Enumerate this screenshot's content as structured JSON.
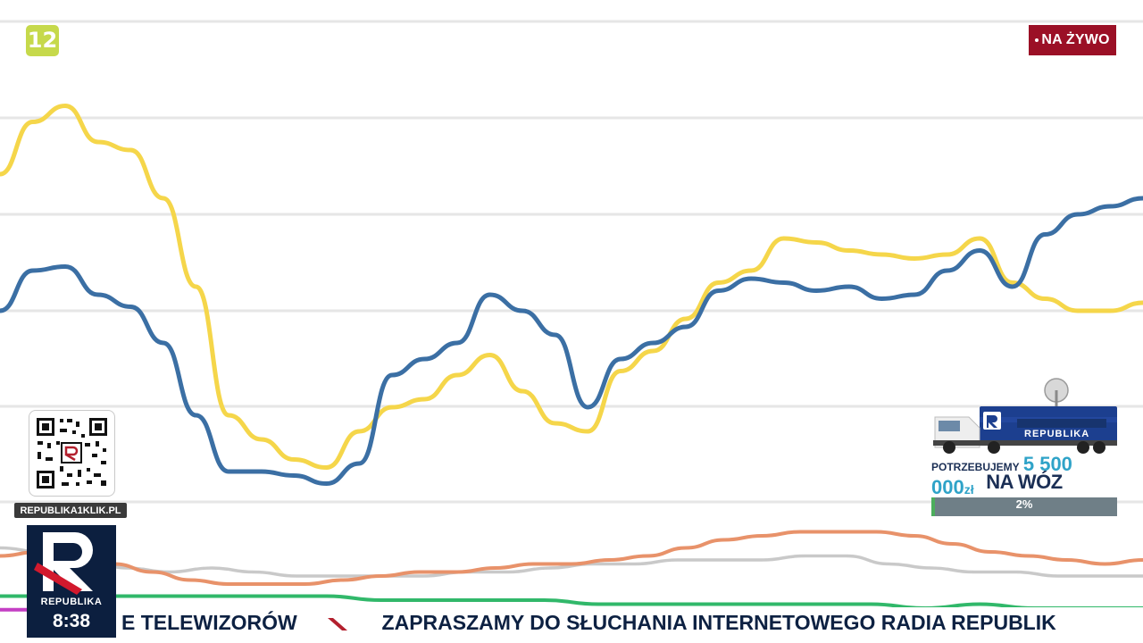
{
  "channel_badge": "12",
  "live_label": "NA ŻYWO",
  "website": "REPUBLIKA1KLIK.PL",
  "logo_name": "REPUBLIKA",
  "clock": "8:38",
  "ticker": {
    "left_text": "E TELEWIZORÓW",
    "right_text": "ZAPRASZAMY DO SŁUCHANIA INTERNETOWEGO RADIA REPUBLIK"
  },
  "promo": {
    "truck_label": "REPUBLIKA",
    "line1_prefix": "POTRZEBUJEMY",
    "amount": "5 500 000",
    "currency": "zł",
    "line2": "NA WÓZ TRANSMISYJNY",
    "progress_label": "2%",
    "progress_value": 0.02
  },
  "colors": {
    "blue": "#3b6fa4",
    "yellow": "#f5d64a",
    "orange": "#e8926a",
    "gray": "#c9c9c9",
    "green": "#31b86a",
    "magenta": "#c43ec4",
    "live_bg": "#9b1026",
    "logo_bg": "#0c1f3f"
  },
  "chart_data": {
    "type": "line",
    "title": "",
    "xlabel": "",
    "ylabel": "",
    "grid": true,
    "ylim": [
      0,
      6
    ],
    "series": [
      {
        "color": "blue",
        "values": [
          3.6,
          4.1,
          4.15,
          3.8,
          3.65,
          3.2,
          2.3,
          1.6,
          1.6,
          1.55,
          1.45,
          1.7,
          2.8,
          3.0,
          3.2,
          3.8,
          3.6,
          3.3,
          2.4,
          3.0,
          3.2,
          3.4,
          3.85,
          4.0,
          3.95,
          3.85,
          3.9,
          3.75,
          3.8,
          4.1,
          4.35,
          3.9,
          4.55,
          4.8,
          4.9,
          5.0
        ]
      },
      {
        "color": "yellow",
        "values": [
          5.3,
          5.95,
          6.15,
          5.7,
          5.6,
          5.0,
          3.9,
          2.3,
          2.0,
          1.75,
          1.65,
          2.1,
          2.4,
          2.5,
          2.8,
          3.05,
          2.6,
          2.2,
          2.1,
          2.85,
          3.1,
          3.5,
          3.95,
          4.1,
          4.5,
          4.45,
          4.35,
          4.3,
          4.25,
          4.3,
          4.5,
          3.95,
          3.75,
          3.6,
          3.6,
          3.7
        ]
      },
      {
        "color": "orange",
        "values": [
          0.55,
          0.6,
          0.55,
          0.45,
          0.35,
          0.25,
          0.2,
          0.2,
          0.2,
          0.25,
          0.3,
          0.35,
          0.35,
          0.4,
          0.45,
          0.45,
          0.5,
          0.55,
          0.65,
          0.75,
          0.8,
          0.85,
          0.85,
          0.85,
          0.8,
          0.7,
          0.6,
          0.55,
          0.5,
          0.45,
          0.5
        ]
      },
      {
        "color": "gray",
        "values": [
          0.65,
          0.6,
          0.5,
          0.4,
          0.35,
          0.4,
          0.35,
          0.3,
          0.3,
          0.3,
          0.3,
          0.35,
          0.35,
          0.4,
          0.45,
          0.45,
          0.5,
          0.5,
          0.5,
          0.55,
          0.55,
          0.45,
          0.4,
          0.35,
          0.35,
          0.3,
          0.3,
          0.3
        ]
      },
      {
        "color": "green",
        "values": [
          0.05,
          0.05,
          0.05,
          0.05,
          0.05,
          0.05,
          0.05,
          0.0,
          0.0,
          0.0,
          0.0,
          -0.05,
          -0.05,
          -0.05,
          -0.05,
          -0.05,
          -0.05,
          -0.1,
          -0.05,
          -0.1,
          -0.1,
          -0.1
        ]
      },
      {
        "color": "magenta",
        "values": [
          -0.12,
          -0.12,
          -0.18,
          -0.2,
          -0.22,
          -0.22,
          -0.22,
          -0.22,
          -0.22,
          -0.22,
          -0.22,
          -0.22
        ]
      }
    ]
  }
}
